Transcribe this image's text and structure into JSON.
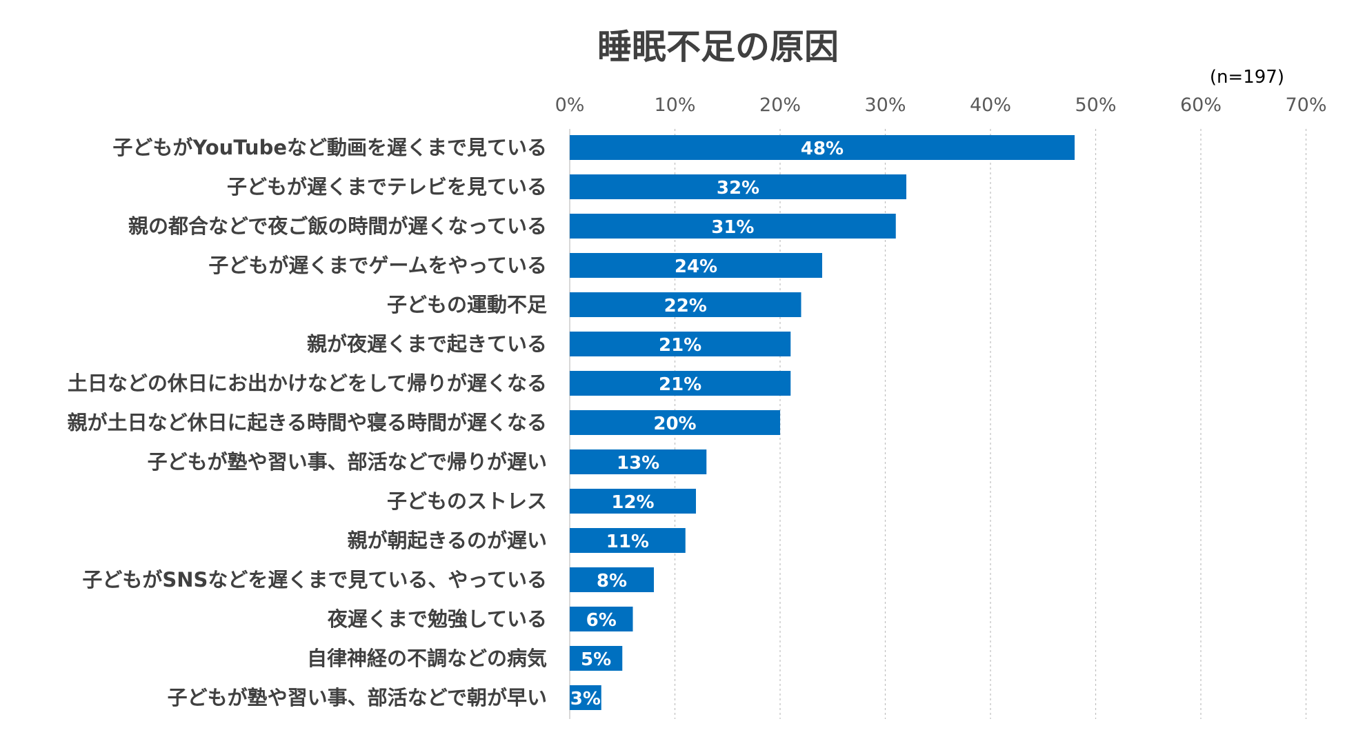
{
  "chart_data": {
    "type": "bar",
    "orientation": "horizontal",
    "title": "睡眠不足の原因",
    "note": "(n=197)",
    "xlabel": "",
    "ylabel": "",
    "xlim": [
      0,
      70
    ],
    "x_ticks": [
      0,
      10,
      20,
      30,
      40,
      50,
      60,
      70
    ],
    "x_tick_labels": [
      "0%",
      "10%",
      "20%",
      "30%",
      "40%",
      "50%",
      "60%",
      "70%"
    ],
    "grid": true,
    "bar_color": "#0070C0",
    "categories": [
      "子どもがYouTubeなど動画を遅くまで見ている",
      "子どもが遅くまでテレビを見ている",
      "親の都合などで夜ご飯の時間が遅くなっている",
      "子どもが遅くまでゲームをやっている",
      "子どもの運動不足",
      "親が夜遅くまで起きている",
      "土日などの休日にお出かけなどをして帰りが遅くなる",
      "親が土日など休日に起きる時間や寝る時間が遅くなる",
      "子どもが塾や習い事、部活などで帰りが遅い",
      "子どものストレス",
      "親が朝起きるのが遅い",
      "子どもがSNSなどを遅くまで見ている、やっている",
      "夜遅くまで勉強している",
      "自律神経の不調などの病気",
      "子どもが塾や習い事、部活などで朝が早い"
    ],
    "values": [
      48,
      32,
      31,
      24,
      22,
      21,
      21,
      20,
      13,
      12,
      11,
      8,
      6,
      5,
      3
    ],
    "data_labels": [
      "48%",
      "32%",
      "31%",
      "24%",
      "22%",
      "21%",
      "21%",
      "20%",
      "13%",
      "12%",
      "11%",
      "8%",
      "6%",
      "5%",
      "3%"
    ]
  }
}
